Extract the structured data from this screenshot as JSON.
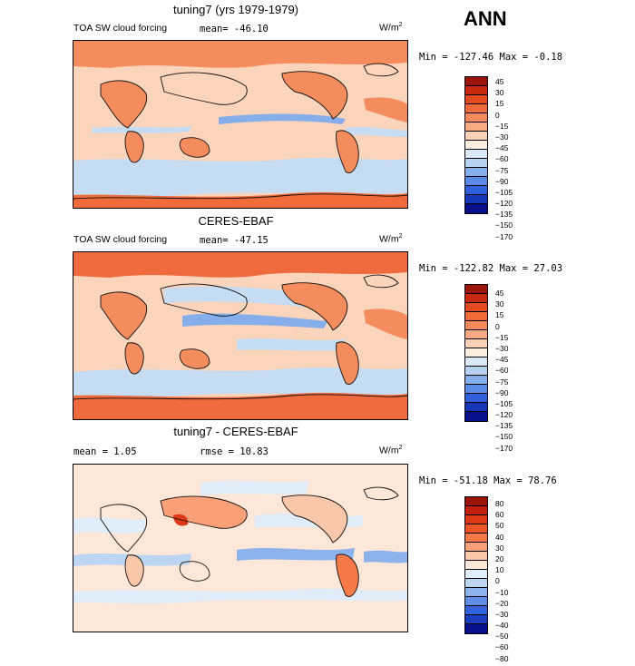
{
  "season": "ANN",
  "panels": [
    {
      "title": "tuning7 (yrs 1979-1979)",
      "variable": "TOA SW cloud forcing",
      "mean_label": "mean=  -46.10",
      "units": "W/m",
      "units_exp": "2",
      "minmax": "Min = -127.46 Max =  -0.18",
      "levels": [
        "45",
        "30",
        "15",
        "0",
        "−15",
        "−30",
        "−45",
        "−60",
        "−75",
        "−90",
        "−105",
        "−120",
        "−135",
        "−150",
        "−170"
      ],
      "colors": [
        "#9b1508",
        "#c92810",
        "#e34a1d",
        "#f06a3a",
        "#f58b5c",
        "#f8aa82",
        "#fbd0b4",
        "#fdeee2",
        "#dbe8f6",
        "#b7d2f1",
        "#86aeeb",
        "#5a8be6",
        "#2f5fdc",
        "#1636b8",
        "#07108a"
      ]
    },
    {
      "title": "CERES-EBAF",
      "variable": "TOA SW cloud forcing",
      "mean_label": "mean=  -47.15",
      "units": "W/m",
      "units_exp": "2",
      "minmax": "Min = -122.82 Max =  27.03",
      "levels": [
        "45",
        "30",
        "15",
        "0",
        "−15",
        "−30",
        "−45",
        "−60",
        "−75",
        "−90",
        "−105",
        "−120",
        "−135",
        "−150",
        "−170"
      ],
      "colors": [
        "#9b1508",
        "#c92810",
        "#e34a1d",
        "#f06a3a",
        "#f58b5c",
        "#f8aa82",
        "#fbd0b4",
        "#fdeee2",
        "#dbe8f6",
        "#b7d2f1",
        "#86aeeb",
        "#5a8be6",
        "#2f5fdc",
        "#1636b8",
        "#07108a"
      ]
    },
    {
      "title": "tuning7 - CERES-EBAF",
      "mean_label": "mean =    1.05",
      "rmse_label": "rmse =   10.83",
      "units": "W/m",
      "units_exp": "2",
      "minmax": "Min = -51.18 Max =  78.76",
      "levels": [
        "80",
        "60",
        "50",
        "40",
        "30",
        "20",
        "10",
        "0",
        "−10",
        "−20",
        "−30",
        "−40",
        "−50",
        "−60",
        "−80"
      ],
      "colors": [
        "#9b1508",
        "#c21f0c",
        "#dc3815",
        "#ec5524",
        "#f57a47",
        "#f8a078",
        "#fbc7aa",
        "#fde7d8",
        "#e0ecf8",
        "#bcd5f2",
        "#8db3ec",
        "#5f8fe6",
        "#3063dc",
        "#1a3cbf",
        "#07108a"
      ]
    }
  ],
  "colors": {
    "ocean_warm": "#fbd4bc",
    "land_warm": "#f48c5e",
    "cool": "#c6dcf3",
    "strong_warm": "#ef6a3c",
    "strong_cool": "#7aa5e8"
  }
}
